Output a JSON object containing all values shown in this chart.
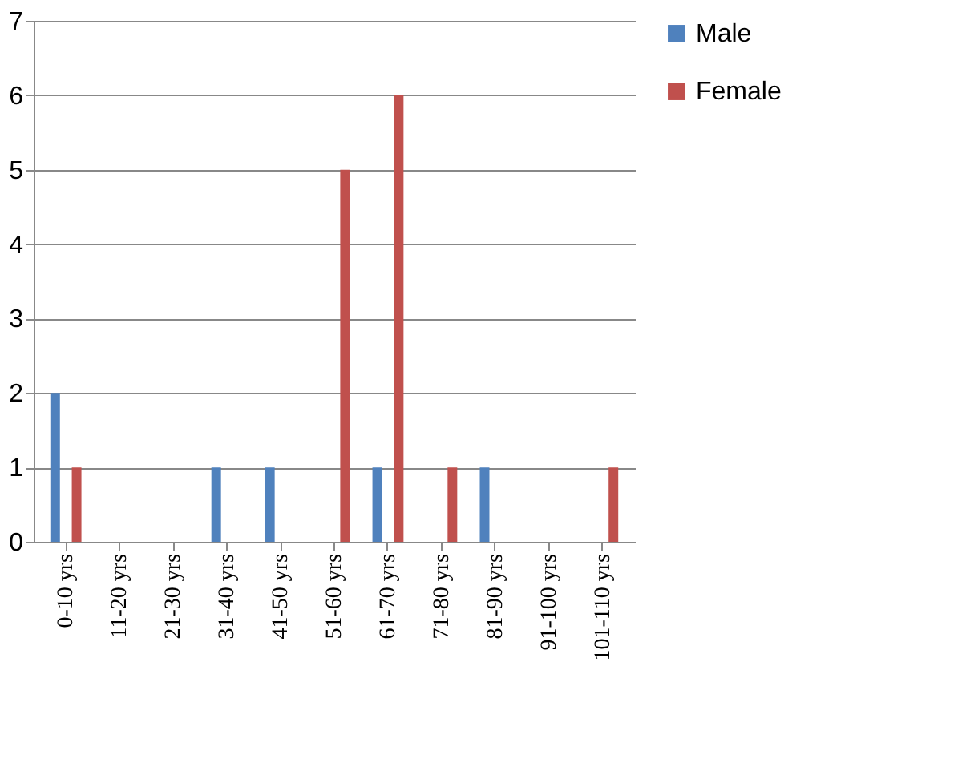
{
  "chart_data": {
    "type": "bar",
    "categories": [
      "0-10 yrs",
      "11-20 yrs",
      "21-30 yrs",
      "31-40 yrs",
      "41-50 yrs",
      "51-60 yrs",
      "61-70 yrs",
      "71-80 yrs",
      "81-90 yrs",
      "91-100 yrs",
      "101-110 yrs"
    ],
    "series": [
      {
        "name": "Male",
        "color": "#4f81bd",
        "values": [
          2,
          0,
          0,
          1,
          1,
          0,
          1,
          0,
          1,
          0,
          0
        ]
      },
      {
        "name": "Female",
        "color": "#c0504d",
        "values": [
          1,
          0,
          0,
          0,
          0,
          5,
          6,
          1,
          0,
          0,
          1
        ]
      }
    ],
    "ylim": [
      0,
      7
    ],
    "yticks": [
      0,
      1,
      2,
      3,
      4,
      5,
      6,
      7
    ],
    "grid": "y",
    "legend": "right"
  }
}
